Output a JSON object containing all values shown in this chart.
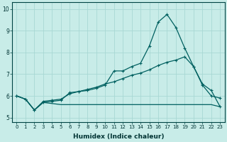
{
  "xlabel": "Humidex (Indice chaleur)",
  "xlim": [
    -0.5,
    23.5
  ],
  "ylim": [
    4.8,
    10.3
  ],
  "yticks": [
    5,
    6,
    7,
    8,
    9,
    10
  ],
  "xticks": [
    0,
    1,
    2,
    3,
    4,
    5,
    6,
    7,
    8,
    9,
    10,
    11,
    12,
    13,
    14,
    15,
    16,
    17,
    18,
    19,
    20,
    21,
    22,
    23
  ],
  "bg_color": "#c8ece8",
  "line_color": "#006060",
  "grid_color": "#a8d8d4",
  "line1_x": [
    0,
    1,
    2,
    3,
    4,
    5,
    6,
    7,
    8,
    9,
    10,
    11,
    12,
    13,
    14,
    15,
    16,
    17,
    18,
    19,
    20,
    21,
    22,
    23
  ],
  "line1_y": [
    6.0,
    5.85,
    5.35,
    5.7,
    5.75,
    5.8,
    6.15,
    6.2,
    6.25,
    6.35,
    6.5,
    7.15,
    7.15,
    7.35,
    7.5,
    8.3,
    9.4,
    9.75,
    9.15,
    8.2,
    7.35,
    6.5,
    6.0,
    5.9
  ],
  "line2_x": [
    0,
    1,
    2,
    3,
    4,
    5,
    6,
    7,
    8,
    9,
    10,
    11,
    12,
    13,
    14,
    15,
    16,
    17,
    18,
    19,
    20,
    21,
    22,
    23
  ],
  "line2_y": [
    6.0,
    5.85,
    5.35,
    5.75,
    5.8,
    5.85,
    6.1,
    6.2,
    6.3,
    6.4,
    6.55,
    6.65,
    6.8,
    6.95,
    7.05,
    7.2,
    7.4,
    7.55,
    7.65,
    7.8,
    7.35,
    6.55,
    6.25,
    5.5
  ],
  "line3_x": [
    0,
    1,
    2,
    3,
    4,
    5,
    6,
    7,
    8,
    9,
    10,
    11,
    12,
    13,
    14,
    15,
    16,
    17,
    18,
    19,
    20,
    21,
    22,
    23
  ],
  "line3_y": [
    6.0,
    5.85,
    5.35,
    5.7,
    5.65,
    5.6,
    5.6,
    5.6,
    5.6,
    5.6,
    5.6,
    5.6,
    5.6,
    5.6,
    5.6,
    5.6,
    5.6,
    5.6,
    5.6,
    5.6,
    5.6,
    5.6,
    5.6,
    5.5
  ],
  "title_fontsize": 0,
  "tick_fontsize_x": 5.0,
  "tick_fontsize_y": 5.5,
  "xlabel_fontsize": 6.5
}
